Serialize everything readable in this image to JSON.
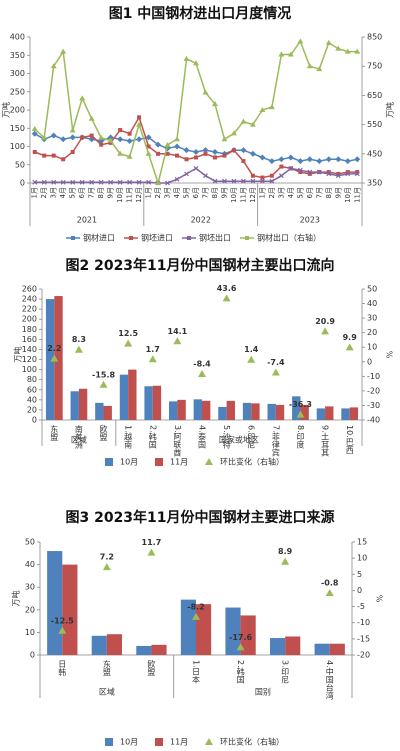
{
  "chart_data": [
    {
      "type": "line",
      "title": "图1 中国钢材进出口月度情况",
      "ylabel": "万吨",
      "y2label": "万吨",
      "categories": [
        "1月",
        "2月",
        "3月",
        "4月",
        "5月",
        "6月",
        "7月",
        "8月",
        "9月",
        "10月",
        "11月",
        "12月",
        "1月",
        "2月",
        "3月",
        "4月",
        "5月",
        "6月",
        "7月",
        "8月",
        "9月",
        "10月",
        "11月",
        "12月",
        "1月",
        "2月",
        "3月",
        "4月",
        "5月",
        "6月",
        "7月",
        "8月",
        "9月",
        "10月",
        "11月"
      ],
      "years": [
        "2021",
        "2022",
        "2023"
      ],
      "ylim": [
        0,
        400
      ],
      "yticks": [
        0,
        50,
        100,
        150,
        200,
        250,
        300,
        350,
        400
      ],
      "y2lim": [
        350,
        850
      ],
      "y2ticks": [
        350,
        450,
        550,
        650,
        750,
        850
      ],
      "series": [
        {
          "name": "钢材进口",
          "color": "#4f81bd",
          "marker": "diamond",
          "values": [
            135,
            120,
            130,
            120,
            125,
            125,
            120,
            115,
            125,
            120,
            115,
            120,
            125,
            105,
            95,
            100,
            90,
            85,
            90,
            85,
            80,
            90,
            90,
            80,
            70,
            60,
            65,
            70,
            60,
            65,
            60,
            65,
            65,
            60,
            65
          ]
        },
        {
          "name": "钢坯进口",
          "color": "#c0504d",
          "marker": "square",
          "values": [
            85,
            75,
            75,
            65,
            85,
            125,
            130,
            105,
            110,
            145,
            135,
            180,
            100,
            80,
            80,
            75,
            65,
            70,
            80,
            70,
            75,
            90,
            60,
            20,
            15,
            20,
            45,
            40,
            30,
            25,
            30,
            30,
            25,
            30,
            30
          ]
        },
        {
          "name": "钢坯出口",
          "color": "#8064a2",
          "marker": "x",
          "values": [
            2,
            2,
            2,
            2,
            2,
            2,
            2,
            2,
            2,
            2,
            2,
            2,
            2,
            0,
            0,
            10,
            25,
            40,
            20,
            5,
            5,
            5,
            5,
            5,
            5,
            5,
            20,
            40,
            35,
            30,
            30,
            25,
            20,
            25,
            25
          ]
        },
        {
          "name": "钢材出口（右轴）",
          "color": "#9bbb59",
          "marker": "triangle",
          "axis": "y2",
          "values": [
            535,
            505,
            750,
            800,
            530,
            640,
            570,
            505,
            495,
            450,
            440,
            550,
            450,
            350,
            480,
            500,
            775,
            760,
            660,
            620,
            500,
            520,
            560,
            550,
            600,
            610,
            790,
            790,
            835,
            750,
            740,
            830,
            810,
            800,
            800
          ]
        }
      ]
    },
    {
      "type": "bar",
      "title": "图2 2023年11月份中国钢材主要出口流向",
      "ylabel": "万吨",
      "y2label": "%",
      "categories": [
        "东盟",
        "南美洲",
        "欧盟",
        "1.越南",
        "2.韩国",
        "3.阿联酋",
        "4.泰国",
        "5.沙特",
        "6.印尼",
        "7.菲律宾",
        "8.印度",
        "9.土耳其",
        "10.巴西"
      ],
      "groups": [
        "区域",
        "国家或地区"
      ],
      "ylim": [
        0,
        260
      ],
      "yticks": [
        0,
        20,
        40,
        60,
        80,
        100,
        120,
        140,
        160,
        180,
        200,
        220,
        240,
        260
      ],
      "y2lim": [
        -40,
        50
      ],
      "y2ticks": [
        -40,
        -30,
        -20,
        -10,
        0,
        10,
        20,
        30,
        40,
        50
      ],
      "series": [
        {
          "name": "10月",
          "color": "#4f81bd",
          "values": [
            240,
            57,
            34,
            90,
            67,
            37,
            41,
            26,
            34,
            32,
            47,
            23,
            23
          ]
        },
        {
          "name": "11月",
          "color": "#c0504d",
          "values": [
            246,
            62,
            28,
            100,
            68,
            40,
            38,
            38,
            33,
            30,
            30,
            27,
            25
          ]
        },
        {
          "name": "环比变化（右轴）",
          "color": "#9bbb59",
          "axis": "y2",
          "values": [
            2.2,
            8.3,
            -15.8,
            12.5,
            1.7,
            14.1,
            -8.4,
            43.6,
            1.4,
            -7.4,
            -36.3,
            20.9,
            9.9
          ]
        }
      ]
    },
    {
      "type": "bar",
      "title": "图3 2023年11月份中国钢材主要进口来源",
      "ylabel": "万吨",
      "y2label": "%",
      "categories": [
        "日韩",
        "东盟",
        "欧盟",
        "1.日本",
        "2.韩国",
        "3.印尼",
        "4.中国台湾"
      ],
      "groups": [
        "区域",
        "国别"
      ],
      "ylim": [
        0,
        50
      ],
      "yticks": [
        0,
        10,
        20,
        30,
        40,
        50
      ],
      "y2lim": [
        -20,
        15
      ],
      "y2ticks": [
        -20,
        -15,
        -10,
        -5,
        0,
        5,
        10,
        15
      ],
      "series": [
        {
          "name": "10月",
          "color": "#4f81bd",
          "values": [
            46,
            8.5,
            4,
            24.5,
            21,
            7.5,
            5
          ]
        },
        {
          "name": "11月",
          "color": "#c0504d",
          "values": [
            40,
            9.2,
            4.5,
            22.5,
            17.5,
            8.2,
            5
          ]
        },
        {
          "name": "环比变化（右轴）",
          "color": "#9bbb59",
          "axis": "y2",
          "values": [
            -12.5,
            7.2,
            11.7,
            -8.2,
            -17.6,
            8.9,
            -0.8
          ]
        }
      ]
    }
  ]
}
